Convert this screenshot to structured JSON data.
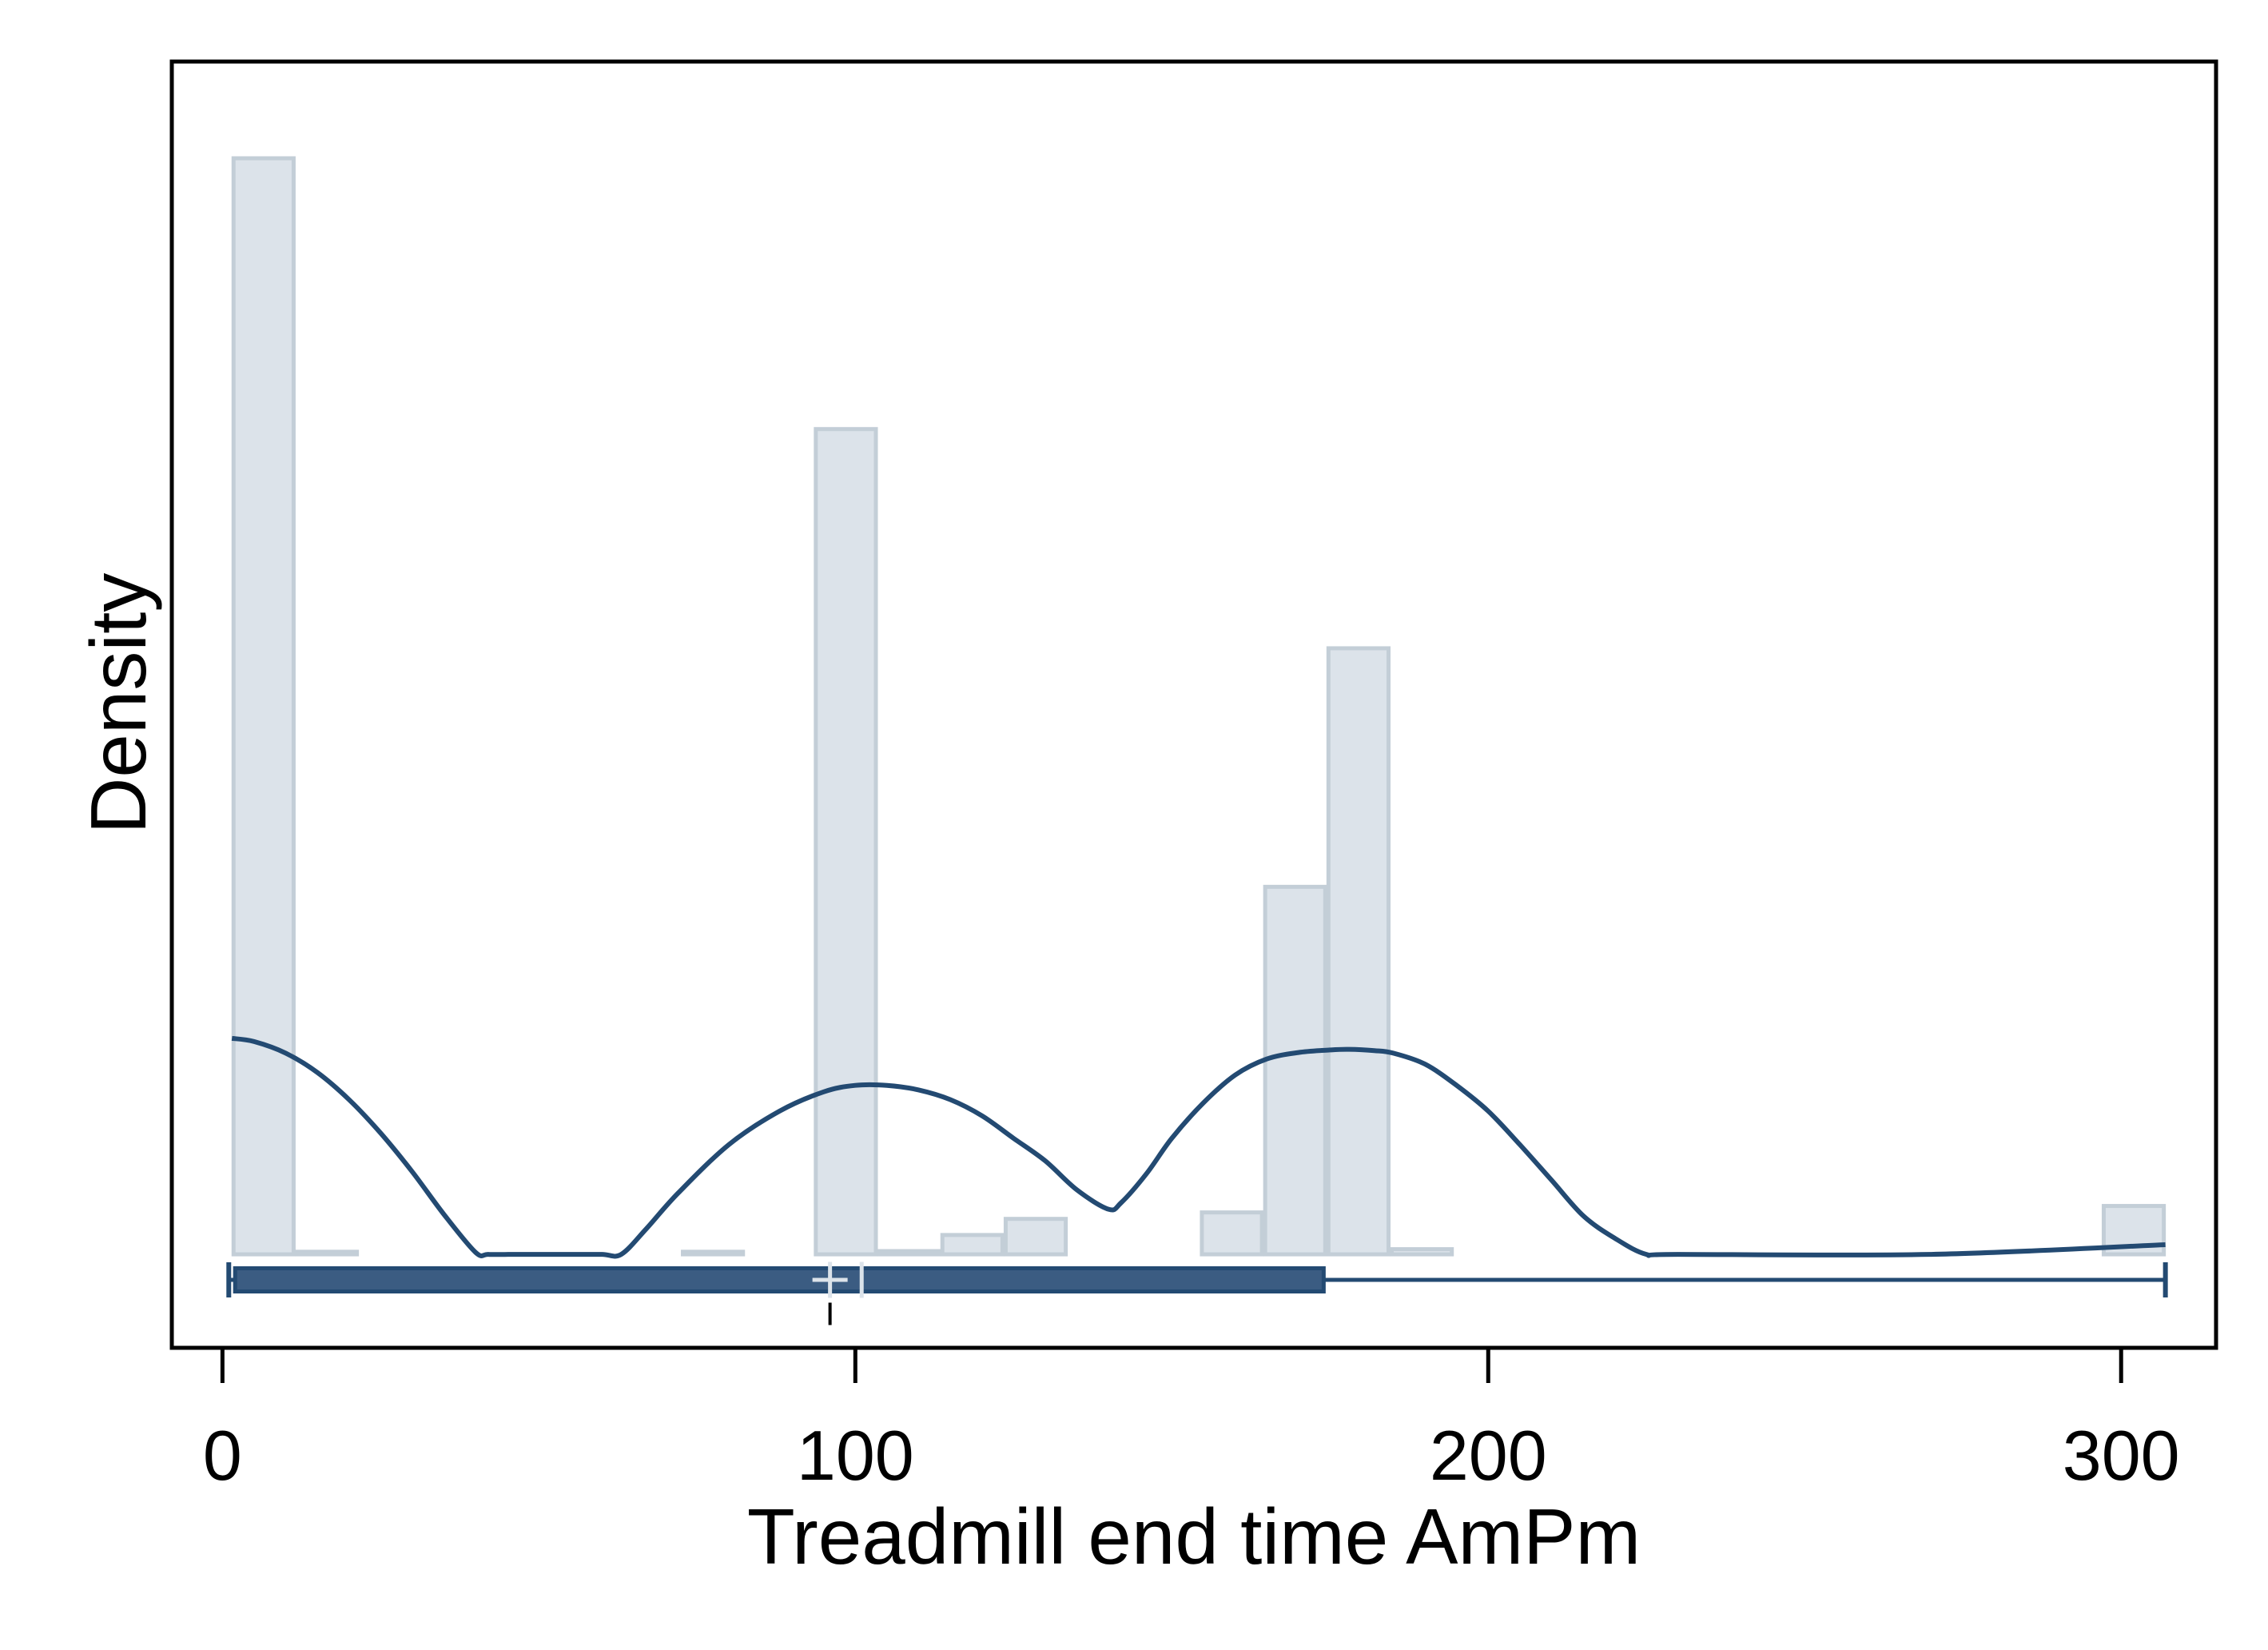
{
  "chart_data": {
    "type": "histogram",
    "title": "",
    "xlabel": "Treadmill end time AmPm",
    "ylabel": "Density",
    "xlim": [
      -8,
      315
    ],
    "ylim": [
      -0.00145,
      0.0185
    ],
    "x_ticks": [
      0,
      100,
      200,
      300
    ],
    "y_ticks": [],
    "grid": false,
    "histogram": {
      "bin_width": 10,
      "bins": [
        {
          "x0": 1.5,
          "x1": 11.5,
          "density": 0.017
        },
        {
          "x0": 11.5,
          "x1": 21.5,
          "density": 4e-05
        },
        {
          "x0": 72.5,
          "x1": 82.5,
          "density": 4e-05
        },
        {
          "x0": 93.5,
          "x1": 103.5,
          "density": 0.0128
        },
        {
          "x0": 103.5,
          "x1": 113.5,
          "density": 5e-05
        },
        {
          "x0": 113.5,
          "x1": 123.5,
          "density": 0.0003
        },
        {
          "x0": 123.5,
          "x1": 133.5,
          "density": 0.00055
        },
        {
          "x0": 154.5,
          "x1": 164.5,
          "density": 0.00065
        },
        {
          "x0": 164.5,
          "x1": 174.5,
          "density": 0.0057
        },
        {
          "x0": 174.5,
          "x1": 184.5,
          "density": 0.0094
        },
        {
          "x0": 184.5,
          "x1": 194.5,
          "density": 8e-05
        },
        {
          "x0": 297,
          "x1": 307,
          "density": 0.00075
        }
      ]
    },
    "kde": {
      "x": [
        1.5,
        5,
        10,
        15,
        20,
        25,
        30,
        35,
        40,
        42,
        46,
        50,
        55,
        60,
        63,
        67,
        72,
        80,
        88,
        95,
        100,
        105,
        110,
        115,
        120,
        125,
        130,
        135,
        140,
        142,
        146,
        150,
        155,
        160,
        165,
        170,
        175,
        178,
        182,
        185,
        190,
        195,
        200,
        205,
        210,
        215,
        220,
        225,
        230,
        270,
        307
      ],
      "y": [
        0.00335,
        0.0033,
        0.00312,
        0.00282,
        0.0024,
        0.00188,
        0.00128,
        0.00062,
        3e-05,
        0,
        0,
        0,
        0,
        0,
        0,
        0.0004,
        0.00095,
        0.0017,
        0.00222,
        0.00252,
        0.00262,
        0.00262,
        0.00255,
        0.0024,
        0.00215,
        0.0018,
        0.00145,
        0.001,
        0.0007,
        0.0008,
        0.00125,
        0.0018,
        0.00235,
        0.00278,
        0.00303,
        0.00313,
        0.00317,
        0.00318,
        0.00316,
        0.00312,
        0.00295,
        0.00262,
        0.00222,
        0.0017,
        0.00115,
        0.0006,
        0.00025,
        0,
        0,
        0,
        0.00015
      ]
    },
    "boxplot": {
      "min": 1,
      "q1": 2,
      "median": 96,
      "mean": 101,
      "q3": 174,
      "max": 307
    },
    "colors": {
      "bar_fill": "#dce3ea",
      "bar_stroke": "#c3ced7",
      "kde_line": "#234a72",
      "box_fill": "#3b5c82",
      "box_stroke": "#234a72",
      "marker": "#dce3ea"
    }
  }
}
